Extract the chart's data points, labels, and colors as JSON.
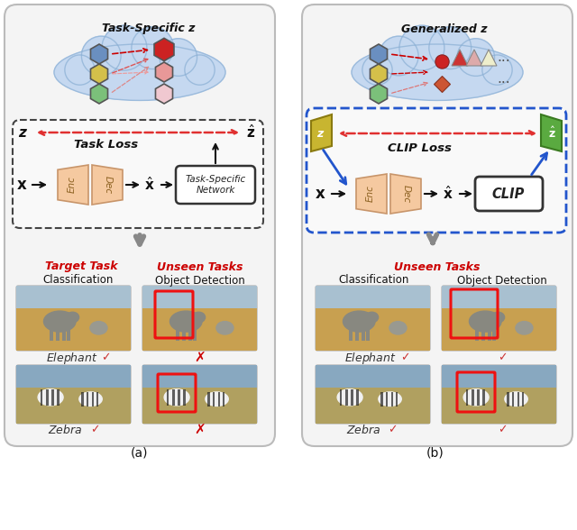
{
  "fig_width": 6.4,
  "fig_height": 5.88,
  "bg_color": "#ffffff",
  "panel_bg": "#f0f0f0",
  "cloud_color": "#c5d8f0",
  "cloud_edge": "#8aafd4",
  "enc_dec_color": "#f5c9a0",
  "enc_dec_edge": "#c8956a",
  "title_a": "Task-Specific z",
  "title_b": "Generalized z",
  "task_loss_label": "Task Loss",
  "clip_loss_label": "CLIP Loss",
  "z_label": "z",
  "zhat_label": "ẑ",
  "x_label": "x",
  "xhat_label": "ẋ",
  "enc_label": "Enc",
  "dec_label": "Dec",
  "tsn_label": "Task-Specific\nNetwork",
  "clip_label": "CLIP",
  "target_task": "Target Task",
  "unseen_tasks": "Unseen Tasks",
  "classification": "Classification",
  "object_detection": "Object Detection",
  "elephant_label": "Elephant",
  "zebra_label": "Zebra",
  "caption_a": "(a)",
  "caption_b": "(b)",
  "red_dashed": "#e03030",
  "blue_arrow": "#2255cc",
  "gray_arrow": "#888888",
  "hex_left": [
    "#6a8fc0",
    "#d4c04a",
    "#7bc07a"
  ],
  "hex_right_a": [
    "#cc2222",
    "#e89898",
    "#f0c8d0"
  ],
  "tri_colors": [
    "#cc3333",
    "#ddaaaa",
    "#eeeecc"
  ]
}
